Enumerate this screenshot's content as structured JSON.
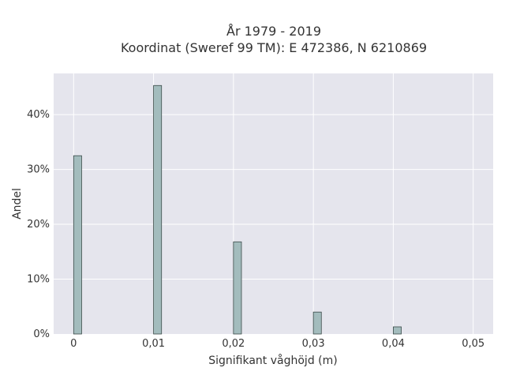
{
  "chart_data": {
    "type": "bar",
    "title_line1": "År 1979 - 2019",
    "title_line2": "Koordinat (Sweref 99 TM): E 472386, N 6210869",
    "xlabel": "Signifikant våghöjd (m)",
    "ylabel": "Andel",
    "x_ticks": [
      "0",
      "0,01",
      "0,02",
      "0,03",
      "0,04",
      "0,05"
    ],
    "y_ticks": [
      "0%",
      "10%",
      "20%",
      "30%",
      "40%"
    ],
    "xlim": [
      -0.0025,
      0.0525
    ],
    "ylim": [
      0,
      47.5
    ],
    "bin_width": 0.001,
    "x": [
      0,
      0.01,
      0.02,
      0.03,
      0.04
    ],
    "values": [
      32.5,
      45.3,
      16.8,
      4.0,
      1.3
    ],
    "value_unit": "%",
    "grid": true,
    "colors": {
      "plot_background": "#e5e5ed",
      "grid": "#ffffff",
      "bar_fill": "#a3bcbd",
      "bar_edge": "#3a4a48",
      "text": "#333333"
    }
  }
}
